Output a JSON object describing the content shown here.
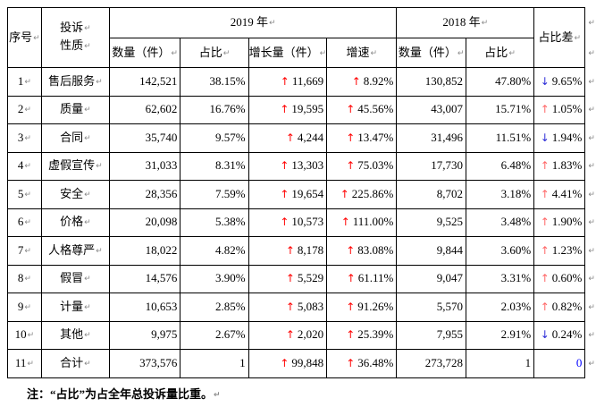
{
  "marks": {
    "cell_end": "↵",
    "row_end": "↵"
  },
  "colors": {
    "up_arrow": "#ff0000",
    "diff_up_arrow": "#ff6666",
    "down_arrow": "#2a2ad6",
    "zero_diff": "#0000ff",
    "border": "#000000",
    "mark": "#8a8a8a"
  },
  "header": {
    "serial": "序号",
    "nature_line1": "投诉",
    "nature_line2": "性质",
    "year2019": "2019 年",
    "year2018": "2018 年",
    "diff": "占比差",
    "sub": {
      "qty2019": "数量（件）",
      "share2019": "占比",
      "growth": "增长量（件）",
      "rate": "增速",
      "qty2018": "数量（件）",
      "share2018": "占比"
    }
  },
  "rows": [
    {
      "no": "1",
      "nature": "售后服务",
      "qty2019": "142,521",
      "share2019": "38.15%",
      "growth": "11,669",
      "growth_arrow": "up",
      "rate": "8.92%",
      "rate_arrow": "up",
      "qty2018": "130,852",
      "share2018": "47.80%",
      "diff": "9.65%",
      "diff_arrow": "down",
      "diff_blue": false
    },
    {
      "no": "2",
      "nature": "质量",
      "qty2019": "62,602",
      "share2019": "16.76%",
      "growth": "19,595",
      "growth_arrow": "up",
      "rate": "45.56%",
      "rate_arrow": "up",
      "qty2018": "43,007",
      "share2018": "15.71%",
      "diff": "1.05%",
      "diff_arrow": "up",
      "diff_blue": false
    },
    {
      "no": "3",
      "nature": "合同",
      "qty2019": "35,740",
      "share2019": "9.57%",
      "growth": "4,244",
      "growth_arrow": "up",
      "rate": "13.47%",
      "rate_arrow": "up",
      "qty2018": "31,496",
      "share2018": "11.51%",
      "diff": "1.94%",
      "diff_arrow": "down",
      "diff_blue": false
    },
    {
      "no": "4",
      "nature": "虚假宣传",
      "qty2019": "31,033",
      "share2019": "8.31%",
      "growth": "13,303",
      "growth_arrow": "up",
      "rate": "75.03%",
      "rate_arrow": "up",
      "qty2018": "17,730",
      "share2018": "6.48%",
      "diff": "1.83%",
      "diff_arrow": "up",
      "diff_blue": false
    },
    {
      "no": "5",
      "nature": "安全",
      "qty2019": "28,356",
      "share2019": "7.59%",
      "growth": "19,654",
      "growth_arrow": "up",
      "rate": "225.86%",
      "rate_arrow": "up",
      "qty2018": "8,702",
      "share2018": "3.18%",
      "diff": "4.41%",
      "diff_arrow": "up",
      "diff_blue": false
    },
    {
      "no": "6",
      "nature": "价格",
      "qty2019": "20,098",
      "share2019": "5.38%",
      "growth": "10,573",
      "growth_arrow": "up",
      "rate": "111.00%",
      "rate_arrow": "up",
      "qty2018": "9,525",
      "share2018": "3.48%",
      "diff": "1.90%",
      "diff_arrow": "up",
      "diff_blue": false
    },
    {
      "no": "7",
      "nature": "人格尊严",
      "qty2019": "18,022",
      "share2019": "4.82%",
      "growth": "8,178",
      "growth_arrow": "up",
      "rate": "83.08%",
      "rate_arrow": "up",
      "qty2018": "9,844",
      "share2018": "3.60%",
      "diff": "1.23%",
      "diff_arrow": "up",
      "diff_blue": false
    },
    {
      "no": "8",
      "nature": "假冒",
      "qty2019": "14,576",
      "share2019": "3.90%",
      "growth": "5,529",
      "growth_arrow": "up",
      "rate": "61.11%",
      "rate_arrow": "up",
      "qty2018": "9,047",
      "share2018": "3.31%",
      "diff": "0.60%",
      "diff_arrow": "up",
      "diff_blue": false
    },
    {
      "no": "9",
      "nature": "计量",
      "qty2019": "10,653",
      "share2019": "2.85%",
      "growth": "5,083",
      "growth_arrow": "up",
      "rate": "91.26%",
      "rate_arrow": "up",
      "qty2018": "5,570",
      "share2018": "2.03%",
      "diff": "0.82%",
      "diff_arrow": "up",
      "diff_blue": false
    },
    {
      "no": "10",
      "nature": "其他",
      "qty2019": "9,975",
      "share2019": "2.67%",
      "growth": "2,020",
      "growth_arrow": "up",
      "rate": "25.39%",
      "rate_arrow": "up",
      "qty2018": "7,955",
      "share2018": "2.91%",
      "diff": "0.24%",
      "diff_arrow": "down",
      "diff_blue": false
    },
    {
      "no": "11",
      "nature": "合计",
      "qty2019": "373,576",
      "share2019": "1",
      "growth": "99,848",
      "growth_arrow": "up",
      "rate": "36.48%",
      "rate_arrow": "up",
      "qty2018": "273,728",
      "share2018": "1",
      "diff": "0",
      "diff_arrow": "none",
      "diff_blue": true
    }
  ],
  "footnote": "注：“占比”为占全年总投诉量比重。"
}
